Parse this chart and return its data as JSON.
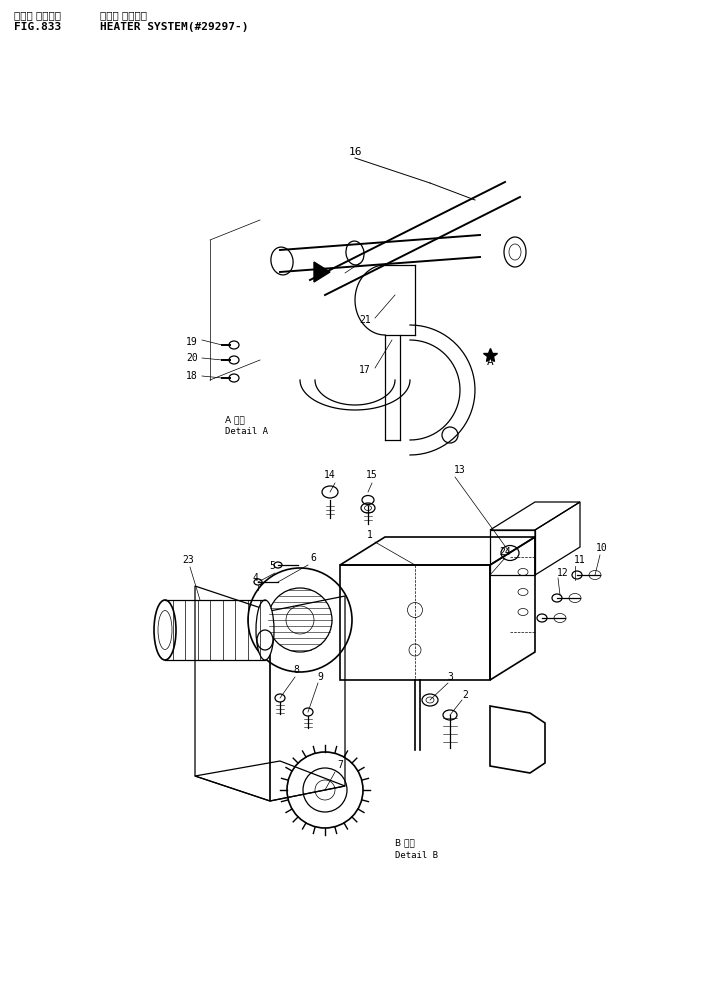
{
  "title_japanese": "ヒータ システム",
  "title_english": "HEATER SYSTEM(#29297-)",
  "fig_number": "FIG.833",
  "bg_color": "#ffffff",
  "line_color": "#000000",
  "fig_width": 7.1,
  "fig_height": 9.91,
  "dpi": 100
}
